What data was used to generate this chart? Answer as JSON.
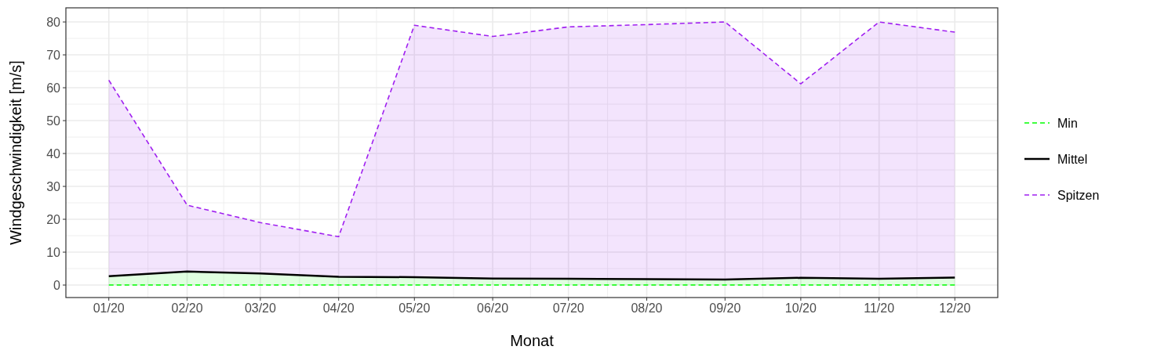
{
  "chart_data": {
    "type": "line",
    "xlabel": "Monat",
    "ylabel": "Windgeschwindigkeit [m/s]",
    "x": [
      "2020-01-01",
      "2020-02-01",
      "2020-03-01",
      "2020-04-01",
      "2020-05-01",
      "2020-06-01",
      "2020-07-01",
      "2020-08-01",
      "2020-09-01",
      "2020-10-01",
      "2020-11-01",
      "2020-12-01"
    ],
    "xlim": [
      "2019-12-15",
      "2020-12-18"
    ],
    "xticks": [
      {
        "value": "2020-01-01",
        "label": "01/20"
      },
      {
        "value": "2020-02-01",
        "label": "02/20"
      },
      {
        "value": "2020-03-01",
        "label": "03/20"
      },
      {
        "value": "2020-04-01",
        "label": "04/20"
      },
      {
        "value": "2020-05-01",
        "label": "05/20"
      },
      {
        "value": "2020-06-01",
        "label": "06/20"
      },
      {
        "value": "2020-07-01",
        "label": "07/20"
      },
      {
        "value": "2020-08-01",
        "label": "08/20"
      },
      {
        "value": "2020-09-01",
        "label": "09/20"
      },
      {
        "value": "2020-10-01",
        "label": "10/20"
      },
      {
        "value": "2020-11-01",
        "label": "11/20"
      },
      {
        "value": "2020-12-01",
        "label": "12/20"
      }
    ],
    "ylim": [
      -3.8,
      84.3
    ],
    "yticks": [
      0,
      10,
      20,
      30,
      40,
      50,
      60,
      70,
      80
    ],
    "grid": true,
    "legend": "right",
    "series": [
      {
        "name": "Spitzen",
        "color": "#a020f0",
        "line_style": "dashed",
        "values": [
          62.3,
          24.3,
          19,
          14.7,
          79,
          75.6,
          78.5,
          79.2,
          80,
          61.2,
          80,
          76.9
        ],
        "lower": [
          2.7,
          4.1,
          3.5,
          2.5,
          2.4,
          2.0,
          1.9,
          1.8,
          1.7,
          2.2,
          1.9,
          2.3
        ],
        "upper": [
          62.3,
          24.3,
          19,
          14.7,
          79,
          75.6,
          78.5,
          79.2,
          80,
          61.2,
          80,
          76.9
        ]
      },
      {
        "name": "Mittel",
        "color": "#000000",
        "line_style": "solid",
        "values": [
          2.7,
          4.1,
          3.5,
          2.5,
          2.4,
          2.0,
          1.9,
          1.8,
          1.7,
          2.2,
          1.9,
          2.3
        ]
      },
      {
        "name": "Min",
        "color": "#00ff00",
        "line_style": "dashed",
        "values": [
          0,
          0,
          0,
          0,
          0,
          0,
          0,
          0,
          0,
          0,
          0,
          0
        ],
        "lower": [
          0,
          0,
          0,
          0,
          0,
          0,
          0,
          0,
          0,
          0,
          0,
          0
        ],
        "upper": [
          2.7,
          4.1,
          3.5,
          2.5,
          2.4,
          2.0,
          1.9,
          1.8,
          1.7,
          2.2,
          1.9,
          2.3
        ]
      }
    ]
  }
}
